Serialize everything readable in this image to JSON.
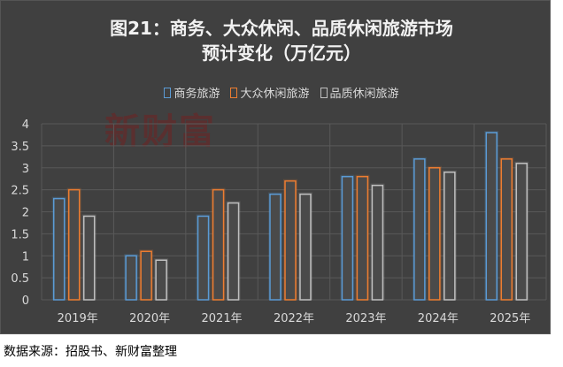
{
  "chart_data": {
    "type": "bar",
    "title": "图21：商务、大众休闲、品质休闲旅游市场",
    "subtitle": "预计变化（万亿元）",
    "categories": [
      "2019年",
      "2020年",
      "2021年",
      "2022年",
      "2023年",
      "2024年",
      "2025年"
    ],
    "series": [
      {
        "name": "商务旅游",
        "color": "#5b9bd5",
        "values": [
          2.3,
          1.0,
          1.9,
          2.4,
          2.8,
          3.2,
          3.8
        ]
      },
      {
        "name": "大众休闲旅游",
        "color": "#ed7d31",
        "values": [
          2.5,
          1.1,
          2.5,
          2.7,
          2.8,
          3.0,
          3.2
        ]
      },
      {
        "name": "品质休闲旅游",
        "color": "#bfbfbf",
        "values": [
          1.9,
          0.9,
          2.2,
          2.4,
          2.6,
          2.9,
          3.1
        ]
      }
    ],
    "ylim": [
      0,
      4
    ],
    "yticks": [
      "0",
      "0.5",
      "1",
      "1.5",
      "2",
      "2.5",
      "3",
      "3.5",
      "4"
    ],
    "grid": true,
    "legend": "top"
  },
  "watermark": "新财富",
  "footer": "数据来源：招股书、新财富整理"
}
